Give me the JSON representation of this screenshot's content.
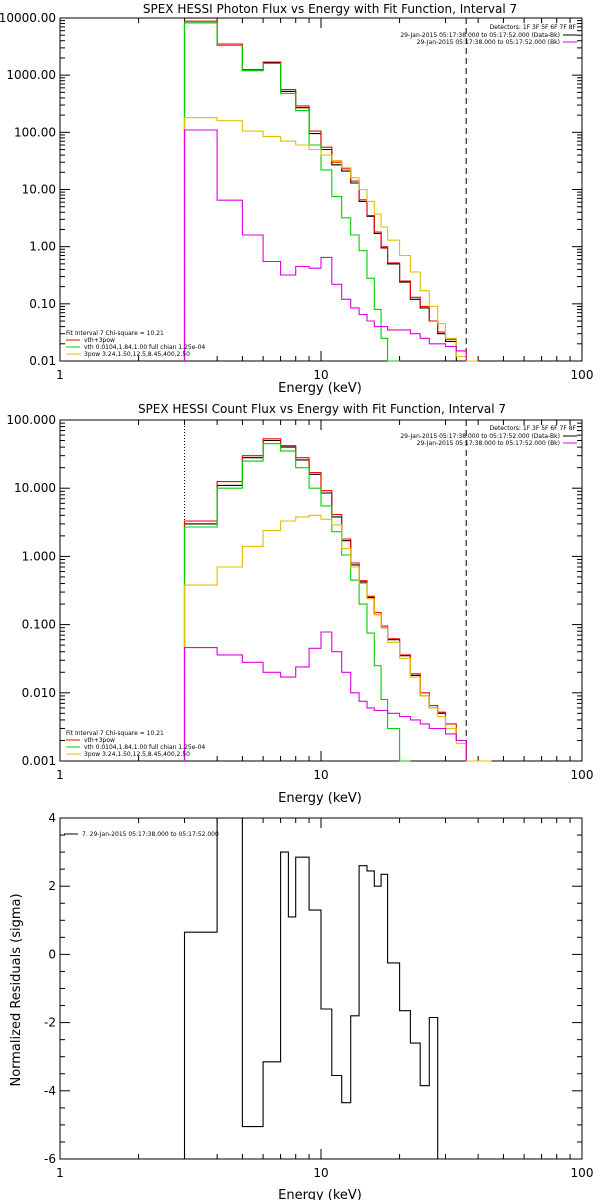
{
  "chart_data": [
    {
      "type": "line",
      "step": true,
      "title": "SPEX HESSI Photon Flux vs Energy with Fit Function, Interval 7",
      "xlabel": "Energy (keV)",
      "ylabel": "",
      "xscale": "log",
      "yscale": "log",
      "xlim": [
        1,
        100
      ],
      "ylim": [
        0.01,
        10000
      ],
      "x_ticks": [
        1,
        10,
        100
      ],
      "x_tick_labels": [
        "1",
        "10",
        "100"
      ],
      "y_ticks": [
        0.01,
        0.1,
        1,
        10,
        100,
        1000,
        10000
      ],
      "y_tick_labels": [
        "0.01",
        "0.10",
        "1.00",
        "10.00",
        "100.00",
        "1000.00",
        "10000.00"
      ],
      "vlines": [
        {
          "x": 3.0,
          "style": "dotted",
          "color": "#000000"
        },
        {
          "x": 36,
          "style": "dashed",
          "color": "#000000"
        }
      ],
      "legend_top_right": {
        "title": "Detectors: 1F 3F 5F 6F 7F 8F",
        "items": [
          {
            "label": "29-Jan-2015 05:17:38.000 to 05:17:52.000 (Data-Bk)",
            "color": "#000000"
          },
          {
            "label": "29-Jan-2015 05:17:38.000 to 05:17:52.000 (Bk)",
            "color": "#e000e0"
          }
        ]
      },
      "legend_bottom_left": {
        "title": "Fit Interval 7  Chi-square = 10.21",
        "items": [
          {
            "label": "vth+3pow",
            "color": "#ff0000"
          },
          {
            "label": "vth 0.0104,1.84,1.00  full chian 1.25e-04",
            "color": "#00d000"
          },
          {
            "label": "3pow 3.24,1.50,12.5,8.45,400,2.50",
            "color": "#e0c000"
          }
        ]
      },
      "edges": [
        3.0,
        3.5,
        4.0,
        4.5,
        5.0,
        5.5,
        6.0,
        6.5,
        7.0,
        7.5,
        8.0,
        8.5,
        9.0,
        10.0,
        11.0,
        12.0,
        13.0,
        14.0,
        15.0,
        16.0,
        17.0,
        18.0,
        20.0,
        22.0,
        24.0,
        26.0,
        28.0,
        30.0,
        33.0,
        36.0,
        40.0,
        45.0
      ],
      "series": [
        {
          "name": "",
          "color": "#000000",
          "values": [
            8200,
            8200,
            3300,
            3300,
            1200,
            1200,
            1650,
            1650,
            520,
            520,
            270,
            270,
            95,
            50,
            27,
            21,
            13,
            6.2,
            3.4,
            1.7,
            0.95,
            0.5,
            0.24,
            0.12,
            0.085,
            0.05,
            0.03,
            0.022,
            null,
            null,
            null
          ]
        },
        {
          "name": "",
          "color": "#ff0000",
          "values": [
            8800,
            8800,
            3500,
            3500,
            1250,
            1250,
            1700,
            1700,
            560,
            560,
            290,
            290,
            105,
            55,
            30,
            23,
            14,
            6.6,
            3.5,
            1.8,
            1.0,
            0.52,
            0.25,
            0.13,
            0.09,
            0.05,
            0.032,
            0.024,
            0.015,
            null,
            null
          ]
        },
        {
          "name": "",
          "color": "#00d000",
          "values": [
            8200,
            8200,
            3300,
            3300,
            1200,
            1200,
            1600,
            1600,
            480,
            480,
            240,
            240,
            60,
            22,
            7.5,
            3.2,
            1.6,
            0.85,
            0.28,
            0.08,
            0.025,
            0.007,
            null,
            null,
            null,
            null,
            null,
            null,
            null,
            null,
            null
          ]
        },
        {
          "name": "",
          "color": "#e0c000",
          "values": [
            180,
            180,
            160,
            160,
            105,
            105,
            85,
            85,
            70,
            70,
            60,
            60,
            50,
            40,
            32,
            24,
            16,
            10,
            6.2,
            3.7,
            2.2,
            1.3,
            0.7,
            0.36,
            0.17,
            0.09,
            0.045,
            0.025,
            0.012,
            0.008,
            null
          ]
        },
        {
          "name": "",
          "color": "#e000e0",
          "values": [
            110,
            110,
            6.5,
            6.5,
            1.6,
            1.6,
            0.55,
            0.55,
            0.32,
            0.32,
            0.45,
            0.45,
            0.42,
            0.65,
            0.22,
            0.12,
            0.085,
            0.065,
            0.05,
            0.04,
            0.04,
            0.035,
            0.035,
            0.03,
            0.025,
            0.02,
            0.02,
            0.018,
            0.015,
            null,
            null
          ]
        }
      ]
    },
    {
      "type": "line",
      "step": true,
      "title": "SPEX HESSI Count Flux vs Energy with Fit Function, Interval 7",
      "xlabel": "Energy (keV)",
      "ylabel": "",
      "xscale": "log",
      "yscale": "log",
      "xlim": [
        1,
        100
      ],
      "ylim": [
        0.001,
        100
      ],
      "x_ticks": [
        1,
        10,
        100
      ],
      "x_tick_labels": [
        "1",
        "10",
        "100"
      ],
      "y_ticks": [
        0.001,
        0.01,
        0.1,
        1,
        10,
        100
      ],
      "y_tick_labels": [
        "0.001",
        "0.010",
        "0.100",
        "1.000",
        "10.000",
        "100.000"
      ],
      "vlines": [
        {
          "x": 3.0,
          "style": "dotted",
          "color": "#000000"
        },
        {
          "x": 36,
          "style": "dashed",
          "color": "#000000"
        }
      ],
      "legend_top_right": {
        "title": "Detectors: 1F 3F 5F 6F 7F 8F",
        "items": [
          {
            "label": "29-Jan-2015 05:17:38.000 to 05:17:52.000 (Data-Bk)",
            "color": "#000000"
          },
          {
            "label": "29-Jan-2015 05:17:38.000 to 05:17:52.000 (Bk)",
            "color": "#e000e0"
          }
        ]
      },
      "legend_bottom_left": {
        "title": "Fit Interval 7  Chi-square = 10.21",
        "items": [
          {
            "label": "vth+3pow",
            "color": "#ff0000"
          },
          {
            "label": "vth 0.0104,1.84,1.00  full chian 1.25e-04",
            "color": "#00d000"
          },
          {
            "label": "3pow 3.24,1.50,12.5,8.45,400,2.50",
            "color": "#e0c000"
          }
        ]
      },
      "edges": [
        3.0,
        3.5,
        4.0,
        4.5,
        5.0,
        5.5,
        6.0,
        6.5,
        7.0,
        7.5,
        8.0,
        8.5,
        9.0,
        10.0,
        11.0,
        12.0,
        13.0,
        14.0,
        15.0,
        16.0,
        17.0,
        18.0,
        20.0,
        22.0,
        24.0,
        26.0,
        28.0,
        30.0,
        33.0,
        36.0,
        40.0,
        45.0
      ],
      "series": [
        {
          "name": "",
          "color": "#000000",
          "values": [
            3.0,
            3.0,
            11,
            11,
            28,
            28,
            50,
            50,
            40,
            40,
            26,
            26,
            16,
            8.5,
            3.8,
            1.7,
            0.75,
            0.42,
            0.25,
            0.14,
            0.09,
            0.06,
            0.035,
            0.018,
            0.009,
            0.006,
            0.005,
            0.003,
            0.002,
            null,
            null
          ]
        },
        {
          "name": "",
          "color": "#ff0000",
          "values": [
            3.3,
            3.3,
            12.5,
            12.5,
            30,
            30,
            53,
            53,
            42,
            42,
            28,
            28,
            17,
            9.2,
            4.1,
            1.8,
            0.8,
            0.44,
            0.26,
            0.15,
            0.095,
            0.062,
            0.036,
            0.019,
            0.01,
            0.0065,
            0.0052,
            0.0035,
            0.002,
            null,
            null
          ]
        },
        {
          "name": "",
          "color": "#00d000",
          "values": [
            2.7,
            2.7,
            10,
            10,
            25,
            25,
            45,
            45,
            35,
            35,
            20,
            20,
            10,
            5.5,
            2.3,
            1.05,
            0.45,
            0.2,
            0.075,
            0.025,
            0.008,
            0.003,
            0.001,
            null,
            null,
            null,
            null,
            null,
            null,
            null,
            null
          ]
        },
        {
          "name": "",
          "color": "#e0c000",
          "values": [
            0.38,
            0.38,
            0.7,
            0.7,
            1.4,
            1.4,
            2.4,
            2.4,
            3.3,
            3.3,
            3.8,
            3.8,
            4.0,
            3.5,
            2.9,
            1.3,
            0.7,
            0.4,
            0.24,
            0.14,
            0.09,
            0.055,
            0.032,
            0.017,
            0.009,
            0.006,
            0.0045,
            0.003,
            0.0018,
            0.001,
            0.0007
          ]
        },
        {
          "name": "",
          "color": "#e000e0",
          "values": [
            0.046,
            0.046,
            0.036,
            0.036,
            0.028,
            0.028,
            0.02,
            0.02,
            0.017,
            0.017,
            0.024,
            0.024,
            0.045,
            0.078,
            0.04,
            0.02,
            0.01,
            0.0075,
            0.006,
            0.0055,
            0.0055,
            0.005,
            0.0045,
            0.004,
            0.0035,
            0.003,
            0.003,
            0.0025,
            0.002,
            null,
            null
          ]
        }
      ]
    },
    {
      "type": "line",
      "step": true,
      "title": "",
      "xlabel": "Energy (keV)",
      "ylabel": "Normalized Residuals (sigma)",
      "xscale": "log",
      "yscale": "linear",
      "xlim": [
        1,
        100
      ],
      "ylim": [
        -6,
        4
      ],
      "x_ticks": [
        1,
        10,
        100
      ],
      "x_tick_labels": [
        "1",
        "10",
        "100"
      ],
      "y_ticks": [
        -6,
        -4,
        -2,
        0,
        2,
        4
      ],
      "y_tick_labels": [
        "-6",
        "-4",
        "-2",
        "0",
        "2",
        "4"
      ],
      "legend_top_left": {
        "items": [
          {
            "label": "7. 29-Jan-2015 05:17:38.000 to 05:17:52.000",
            "color": "#000000"
          }
        ]
      },
      "edges": [
        3.0,
        4.0,
        5.0,
        6.0,
        7.0,
        7.5,
        8.0,
        9.0,
        10.0,
        11.0,
        12.0,
        13.0,
        14.0,
        15.0,
        16.0,
        17.0,
        18.0,
        20.0,
        22.0,
        24.0,
        26.0,
        28.0,
        30.0,
        33.0,
        36.0
      ],
      "series": [
        {
          "name": "",
          "color": "#000000",
          "drop_to_floor": true,
          "values": [
            0.65,
            4.05,
            -5.05,
            -3.15,
            3.0,
            1.1,
            2.85,
            1.3,
            -1.6,
            -3.55,
            -4.35,
            -1.8,
            2.6,
            2.45,
            2.0,
            2.35,
            -0.25,
            -1.65,
            -2.6,
            -3.85,
            -1.85,
            null,
            null,
            null
          ]
        }
      ]
    }
  ]
}
